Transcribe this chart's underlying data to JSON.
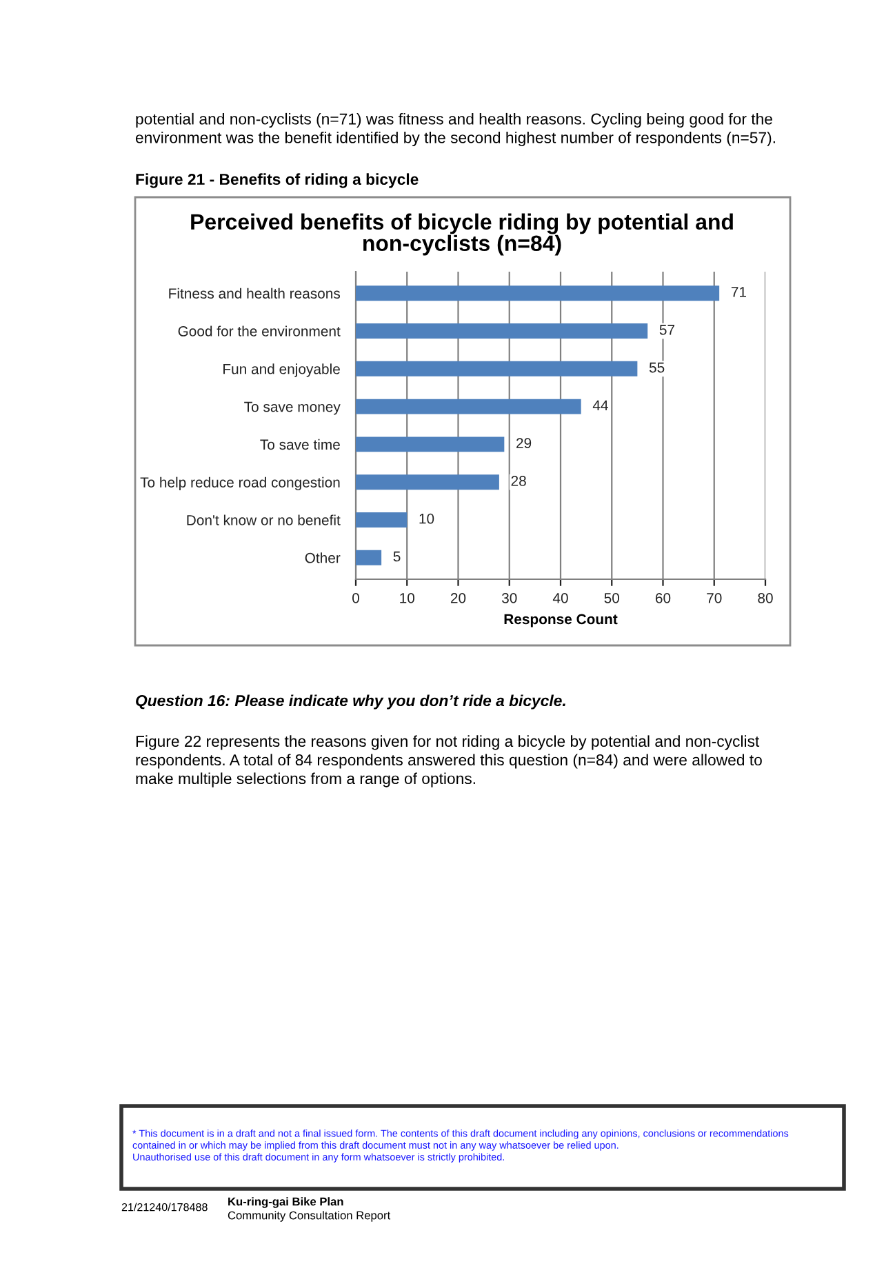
{
  "chart_data": {
    "type": "bar",
    "orientation": "horizontal",
    "title": "Perceived benefits of bicycle riding by potential and\nnon-cyclists (n=84)",
    "xlabel": "Response Count",
    "categories": [
      "Fitness and health reasons",
      "Good for the environment",
      "Fun and enjoyable",
      "To save money",
      "To save time",
      "To help reduce road congestion",
      "Don't know or no benefit",
      "Other"
    ],
    "values": [
      71,
      57,
      55,
      44,
      29,
      28,
      10,
      5
    ],
    "color": "#4f81bd",
    "data_labels": true,
    "xlim": [
      0,
      80
    ],
    "xticks": [
      0,
      10,
      20,
      30,
      40,
      50,
      60,
      70,
      80
    ],
    "grid": "x",
    "legend": false,
    "annotations": [
      "potential and non-cyclists (n=71) was fitness and health reasons. Cycling being good for the\nenvironment was the benefit identified by the second highest number of respondents (n=57).",
      "Figure 21 - Benefits of riding a bicycle",
      "Question 16: Please indicate why you don’t ride a bicycle.",
      "Figure 22 represents the reasons given for not riding a bicycle by potential and non-cyclist\nrespondents. A total of 84 respondents answered this question (n=84) and were allowed to\nmake multiple selections from a range of options.",
      "* This document is in a draft and not a final issued form. The contents of this draft document including any opinions, conclusions or recommendations\ncontained in or which may be implied from this draft document must not in any way whatsoever be relied upon.\nUnauthorised use of this draft document in any form whatsoever is strictly prohibited.",
      "21/21240/178488",
      "Ku-ring-gai Bike Plan",
      "Community Consultation Report"
    ]
  }
}
